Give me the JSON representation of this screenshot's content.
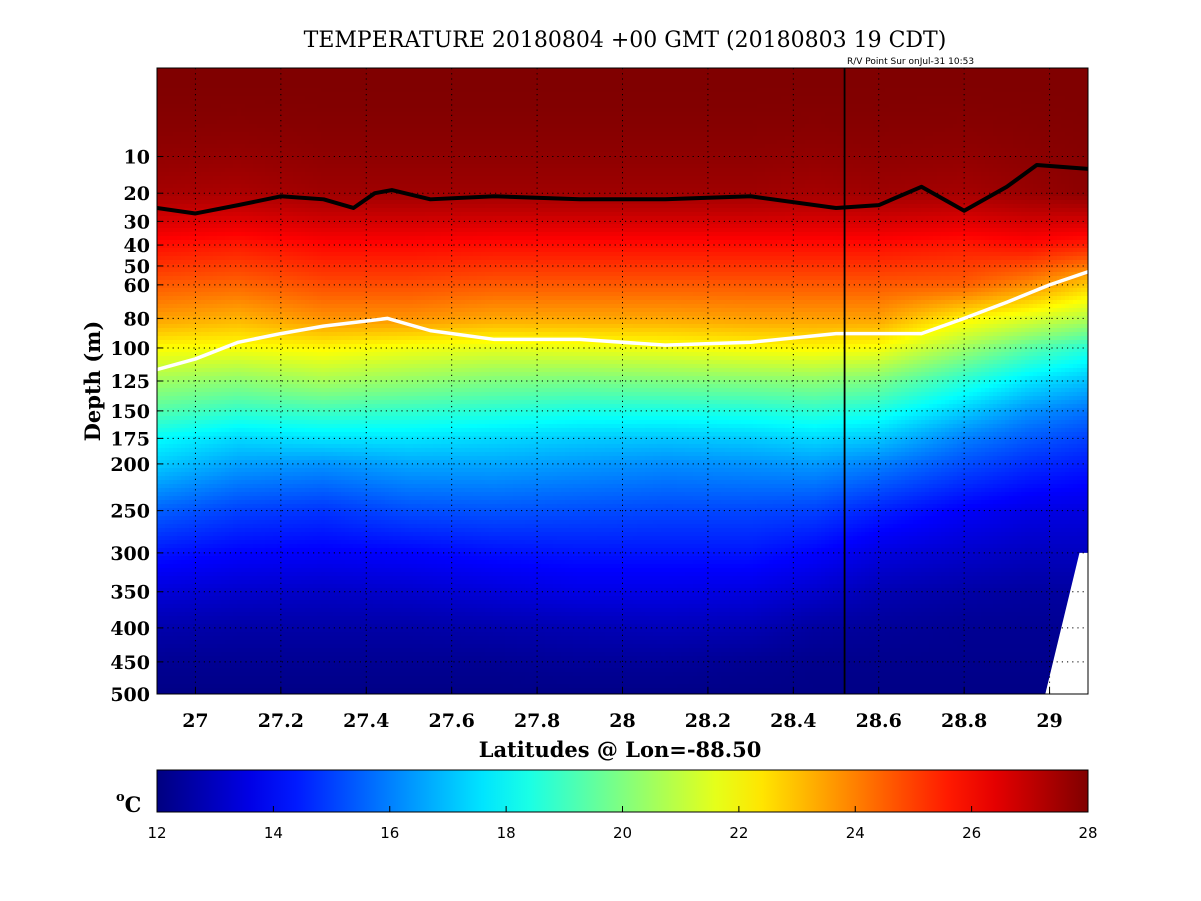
{
  "chart_data": {
    "type": "heatmap",
    "title": "TEMPERATURE 20180804 +00 GMT (20180803 19 CDT)",
    "annotation": "R/V Point Sur onJul-31 10:53",
    "xlabel": "Latitudes @ Lon=-88.50",
    "ylabel": "Depth (m)",
    "xlim": [
      26.91,
      29.09
    ],
    "ylim": [
      0,
      500
    ],
    "y_scale": "sqrt",
    "x_ticks": [
      27,
      27.2,
      27.4,
      27.6,
      27.8,
      28,
      28.2,
      28.4,
      28.6,
      28.8,
      29
    ],
    "x_tick_labels": [
      "27",
      "27.2",
      "27.4",
      "27.6",
      "27.8",
      "28",
      "28.2",
      "28.4",
      "28.6",
      "28.8",
      "29"
    ],
    "y_ticks": [
      10,
      20,
      30,
      40,
      50,
      60,
      80,
      100,
      125,
      150,
      175,
      200,
      250,
      300,
      350,
      400,
      450,
      500
    ],
    "y_tick_labels": [
      "10",
      "20",
      "30",
      "40",
      "50",
      "60",
      "80",
      "100",
      "125",
      "150",
      "175",
      "200",
      "250",
      "300",
      "350",
      "400",
      "450",
      "500"
    ],
    "colorbar": {
      "label": "oC",
      "label_main": "o",
      "label_unit": "C",
      "range": [
        12,
        28
      ],
      "ticks": [
        12,
        14,
        16,
        18,
        20,
        22,
        24,
        26,
        28
      ],
      "tick_labels": [
        "12",
        "14",
        "16",
        "18",
        "20",
        "22",
        "24",
        "26",
        "28"
      ],
      "colormap": "jet"
    },
    "grid": true,
    "vertical_marker_lat": 28.52,
    "mixed_layer_depth_line": {
      "color": "#000000",
      "lat": [
        26.91,
        27.0,
        27.1,
        27.2,
        27.3,
        27.37,
        27.42,
        27.46,
        27.55,
        27.7,
        27.9,
        28.1,
        28.3,
        28.5,
        28.6,
        28.7,
        28.8,
        28.9,
        28.97,
        29.09
      ],
      "depth": [
        25,
        27,
        24,
        21,
        22,
        25,
        20,
        19,
        22,
        21,
        22,
        22,
        21,
        25,
        24,
        18,
        26,
        18,
        12,
        13
      ]
    },
    "isotherm_22_line": {
      "color": "#ffffff",
      "lat": [
        26.91,
        27.0,
        27.1,
        27.2,
        27.3,
        27.45,
        27.55,
        27.7,
        27.9,
        28.1,
        28.3,
        28.5,
        28.7,
        28.8,
        28.9,
        29.0,
        29.09
      ],
      "depth": [
        116,
        108,
        96,
        90,
        85,
        80,
        88,
        94,
        94,
        98,
        96,
        90,
        90,
        80,
        70,
        60,
        53
      ]
    },
    "no_data_region": {
      "color": "#ffffff",
      "polygon_lat": [
        28.99,
        29.07,
        29.09,
        29.09
      ],
      "polygon_depth": [
        500,
        300,
        300,
        500
      ]
    },
    "temperature_field": {
      "description_levels_lat": [
        26.91,
        27.1,
        27.3,
        27.5,
        27.7,
        27.9,
        28.1,
        28.3,
        28.45,
        28.6,
        28.8,
        28.95,
        29.09
      ],
      "depths": [
        0,
        20,
        40,
        60,
        80,
        100,
        125,
        150,
        175,
        200,
        250,
        300,
        350,
        400,
        450,
        500
      ],
      "values": [
        [
          28.0,
          28.0,
          28.0,
          28.0,
          28.0,
          28.0,
          28.0,
          28.0,
          28.0,
          28.0,
          28.0,
          28.0,
          28.0
        ],
        [
          27.4,
          27.3,
          27.5,
          27.5,
          27.5,
          27.5,
          27.5,
          27.5,
          27.4,
          27.5,
          27.4,
          27.6,
          27.8
        ],
        [
          25.8,
          25.6,
          25.9,
          25.9,
          25.8,
          25.8,
          25.8,
          25.8,
          25.8,
          25.8,
          25.6,
          25.8,
          25.5
        ],
        [
          24.6,
          24.4,
          24.8,
          24.8,
          24.6,
          24.6,
          24.6,
          24.6,
          24.6,
          24.6,
          24.5,
          23.8,
          22.8
        ],
        [
          23.5,
          23.2,
          23.7,
          23.7,
          23.4,
          23.4,
          23.4,
          23.5,
          23.5,
          23.5,
          22.2,
          21.5,
          20.8
        ],
        [
          22.0,
          21.9,
          22.1,
          21.8,
          21.6,
          21.7,
          21.8,
          22.0,
          22.1,
          21.9,
          20.5,
          19.4,
          18.6
        ],
        [
          20.5,
          20.2,
          20.6,
          20.3,
          20.0,
          19.9,
          20.0,
          20.1,
          20.2,
          19.9,
          18.6,
          17.6,
          17.0
        ],
        [
          19.3,
          18.8,
          19.0,
          18.8,
          18.6,
          18.4,
          18.4,
          18.5,
          18.7,
          18.4,
          17.2,
          16.3,
          15.8
        ],
        [
          18.0,
          17.4,
          17.6,
          17.6,
          17.4,
          17.2,
          17.1,
          17.2,
          17.4,
          17.1,
          16.0,
          15.4,
          15.0
        ],
        [
          17.2,
          16.5,
          16.3,
          16.6,
          16.6,
          16.4,
          16.2,
          16.3,
          16.4,
          16.0,
          15.2,
          14.7,
          14.4
        ],
        [
          15.5,
          15.0,
          14.8,
          15.2,
          15.3,
          15.2,
          15.1,
          15.1,
          15.0,
          14.5,
          13.9,
          13.6,
          13.5
        ],
        [
          14.3,
          14.0,
          13.9,
          14.0,
          14.2,
          14.3,
          14.3,
          14.3,
          14.0,
          13.5,
          13.2,
          13.0,
          13.0
        ],
        [
          13.4,
          13.2,
          13.1,
          13.2,
          13.4,
          13.6,
          13.6,
          13.5,
          13.2,
          12.8,
          12.6,
          12.5,
          12.5
        ],
        [
          12.7,
          12.6,
          12.6,
          12.6,
          12.7,
          12.8,
          12.9,
          12.8,
          12.5,
          12.4,
          12.3,
          12.3,
          12.3
        ],
        [
          12.3,
          12.3,
          12.3,
          12.3,
          12.3,
          12.4,
          12.4,
          12.3,
          12.2,
          12.2,
          12.2,
          12.2,
          12.2
        ],
        [
          12.1,
          12.1,
          12.1,
          12.1,
          12.1,
          12.1,
          12.1,
          12.1,
          12.1,
          12.1,
          12.1,
          12.1,
          12.1
        ]
      ]
    }
  }
}
